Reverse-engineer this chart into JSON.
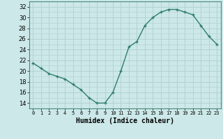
{
  "x": [
    0,
    1,
    2,
    3,
    4,
    5,
    6,
    7,
    8,
    9,
    10,
    11,
    12,
    13,
    14,
    15,
    16,
    17,
    18,
    19,
    20,
    21,
    22,
    23
  ],
  "y": [
    21.5,
    20.5,
    19.5,
    19.0,
    18.5,
    17.5,
    16.5,
    15.0,
    14.0,
    14.0,
    16.0,
    20.0,
    24.5,
    25.5,
    28.5,
    30.0,
    31.0,
    31.5,
    31.5,
    31.0,
    30.5,
    28.5,
    26.5,
    25.0
  ],
  "xlabel": "Humidex (Indice chaleur)",
  "xlim": [
    -0.5,
    23.5
  ],
  "ylim": [
    13,
    33
  ],
  "yticks": [
    14,
    16,
    18,
    20,
    22,
    24,
    26,
    28,
    30,
    32
  ],
  "xticks": [
    0,
    1,
    2,
    3,
    4,
    5,
    6,
    7,
    8,
    9,
    10,
    11,
    12,
    13,
    14,
    15,
    16,
    17,
    18,
    19,
    20,
    21,
    22,
    23
  ],
  "line_color": "#2e7d6e",
  "marker_color": "#2e7d6e",
  "bg_color": "#cce8e8",
  "grid_color": "#b0d0d0"
}
